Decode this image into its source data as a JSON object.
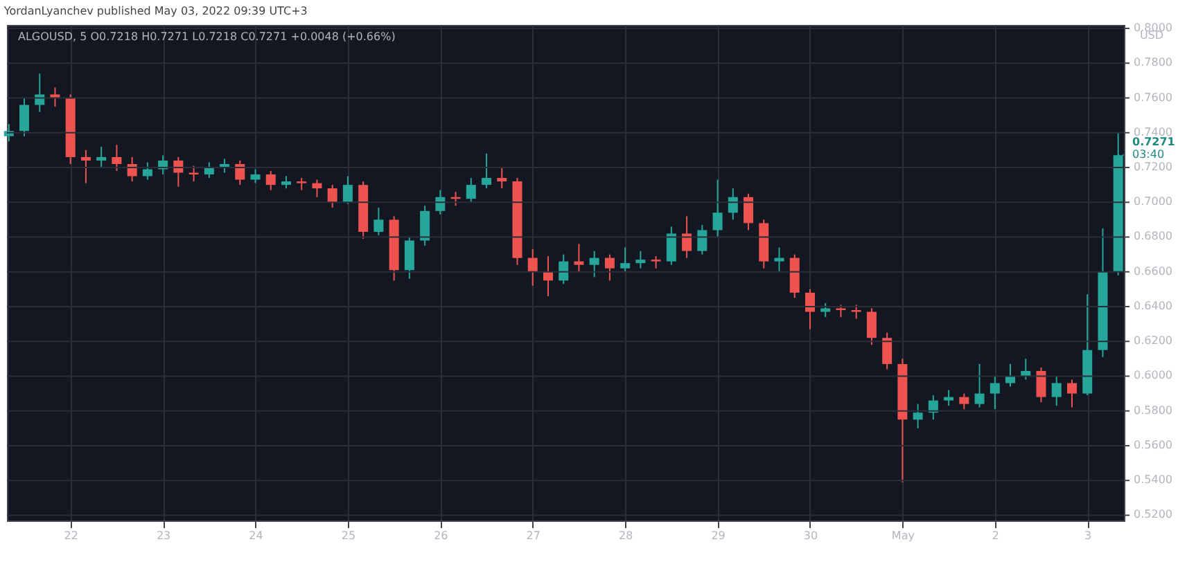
{
  "chart_data": {
    "type": "candlestick",
    "title": "YordanLyanchev published May 03, 2022 09:39 UTC+3",
    "subtitle": "ALGOUSD, 5  O0.7218  H0.7271  L0.7218  C0.7271  +0.0048 (+0.66%)",
    "ylabel": "USD",
    "annotations": [
      {
        "text": "0.7271",
        "x": "2022-05-03T08:00",
        "y": 0.7271
      },
      "03:40"
    ],
    "x": [
      "2022-04-21T08:00",
      "2022-04-21T12:00",
      "2022-04-21T16:00",
      "2022-04-21T20:00",
      "2022-04-22T00:00",
      "2022-04-22T04:00",
      "2022-04-22T08:00",
      "2022-04-22T12:00",
      "2022-04-22T16:00",
      "2022-04-22T20:00",
      "2022-04-23T00:00",
      "2022-04-23T04:00",
      "2022-04-23T08:00",
      "2022-04-23T12:00",
      "2022-04-23T16:00",
      "2022-04-23T20:00",
      "2022-04-24T00:00",
      "2022-04-24T04:00",
      "2022-04-24T08:00",
      "2022-04-24T12:00",
      "2022-04-24T16:00",
      "2022-04-24T20:00",
      "2022-04-25T00:00",
      "2022-04-25T04:00",
      "2022-04-25T08:00",
      "2022-04-25T12:00",
      "2022-04-25T16:00",
      "2022-04-25T20:00",
      "2022-04-26T00:00",
      "2022-04-26T04:00",
      "2022-04-26T08:00",
      "2022-04-26T12:00",
      "2022-04-26T16:00",
      "2022-04-26T20:00",
      "2022-04-27T00:00",
      "2022-04-27T04:00",
      "2022-04-27T08:00",
      "2022-04-27T12:00",
      "2022-04-27T16:00",
      "2022-04-27T20:00",
      "2022-04-28T00:00",
      "2022-04-28T04:00",
      "2022-04-28T08:00",
      "2022-04-28T12:00",
      "2022-04-28T16:00",
      "2022-04-28T20:00",
      "2022-04-29T00:00",
      "2022-04-29T04:00",
      "2022-04-29T08:00",
      "2022-04-29T12:00",
      "2022-04-29T16:00",
      "2022-04-29T20:00",
      "2022-04-30T00:00",
      "2022-04-30T04:00",
      "2022-04-30T08:00",
      "2022-04-30T12:00",
      "2022-04-30T16:00",
      "2022-04-30T20:00",
      "2022-05-01T00:00",
      "2022-05-01T04:00",
      "2022-05-01T08:00",
      "2022-05-01T12:00",
      "2022-05-01T16:00",
      "2022-05-01T20:00",
      "2022-05-02T00:00",
      "2022-05-02T04:00",
      "2022-05-02T08:00",
      "2022-05-02T12:00",
      "2022-05-02T16:00",
      "2022-05-02T20:00",
      "2022-05-03T00:00",
      "2022-05-03T04:00",
      "2022-05-03T08:00"
    ],
    "ohlc": [
      [
        0.738,
        0.745,
        0.735,
        0.741
      ],
      [
        0.741,
        0.76,
        0.738,
        0.756
      ],
      [
        0.756,
        0.774,
        0.752,
        0.762
      ],
      [
        0.762,
        0.766,
        0.755,
        0.76
      ],
      [
        0.76,
        0.762,
        0.722,
        0.726
      ],
      [
        0.726,
        0.73,
        0.711,
        0.724
      ],
      [
        0.724,
        0.732,
        0.72,
        0.726
      ],
      [
        0.726,
        0.733,
        0.718,
        0.722
      ],
      [
        0.722,
        0.726,
        0.712,
        0.715
      ],
      [
        0.715,
        0.723,
        0.713,
        0.719
      ],
      [
        0.719,
        0.727,
        0.716,
        0.724
      ],
      [
        0.724,
        0.726,
        0.709,
        0.717
      ],
      [
        0.717,
        0.721,
        0.712,
        0.716
      ],
      [
        0.716,
        0.723,
        0.714,
        0.72
      ],
      [
        0.72,
        0.725,
        0.717,
        0.722
      ],
      [
        0.722,
        0.724,
        0.71,
        0.713
      ],
      [
        0.713,
        0.719,
        0.711,
        0.716
      ],
      [
        0.716,
        0.718,
        0.707,
        0.71
      ],
      [
        0.71,
        0.715,
        0.708,
        0.712
      ],
      [
        0.712,
        0.714,
        0.707,
        0.711
      ],
      [
        0.711,
        0.713,
        0.703,
        0.708
      ],
      [
        0.708,
        0.71,
        0.697,
        0.7
      ],
      [
        0.7,
        0.715,
        0.699,
        0.71
      ],
      [
        0.71,
        0.712,
        0.679,
        0.683
      ],
      [
        0.683,
        0.697,
        0.681,
        0.69
      ],
      [
        0.69,
        0.692,
        0.655,
        0.661
      ],
      [
        0.661,
        0.68,
        0.656,
        0.678
      ],
      [
        0.678,
        0.698,
        0.675,
        0.695
      ],
      [
        0.695,
        0.707,
        0.693,
        0.703
      ],
      [
        0.703,
        0.706,
        0.698,
        0.702
      ],
      [
        0.702,
        0.714,
        0.7,
        0.71
      ],
      [
        0.71,
        0.728,
        0.708,
        0.714
      ],
      [
        0.714,
        0.72,
        0.708,
        0.712
      ],
      [
        0.712,
        0.714,
        0.664,
        0.668
      ],
      [
        0.668,
        0.673,
        0.652,
        0.66
      ],
      [
        0.66,
        0.669,
        0.646,
        0.655
      ],
      [
        0.655,
        0.67,
        0.653,
        0.666
      ],
      [
        0.666,
        0.676,
        0.66,
        0.664
      ],
      [
        0.664,
        0.672,
        0.657,
        0.668
      ],
      [
        0.668,
        0.67,
        0.655,
        0.662
      ],
      [
        0.662,
        0.674,
        0.66,
        0.665
      ],
      [
        0.665,
        0.672,
        0.662,
        0.667
      ],
      [
        0.667,
        0.669,
        0.662,
        0.666
      ],
      [
        0.666,
        0.686,
        0.664,
        0.682
      ],
      [
        0.682,
        0.692,
        0.668,
        0.672
      ],
      [
        0.672,
        0.687,
        0.67,
        0.684
      ],
      [
        0.684,
        0.713,
        0.68,
        0.694
      ],
      [
        0.694,
        0.708,
        0.69,
        0.703
      ],
      [
        0.703,
        0.705,
        0.684,
        0.688
      ],
      [
        0.688,
        0.69,
        0.662,
        0.666
      ],
      [
        0.666,
        0.674,
        0.66,
        0.668
      ],
      [
        0.668,
        0.67,
        0.645,
        0.648
      ],
      [
        0.648,
        0.65,
        0.627,
        0.637
      ],
      [
        0.637,
        0.642,
        0.634,
        0.639
      ],
      [
        0.639,
        0.641,
        0.634,
        0.638
      ],
      [
        0.638,
        0.641,
        0.633,
        0.637
      ],
      [
        0.637,
        0.639,
        0.618,
        0.622
      ],
      [
        0.622,
        0.625,
        0.604,
        0.607
      ],
      [
        0.607,
        0.61,
        0.539,
        0.575
      ],
      [
        0.575,
        0.584,
        0.57,
        0.579
      ],
      [
        0.579,
        0.589,
        0.575,
        0.586
      ],
      [
        0.586,
        0.592,
        0.583,
        0.588
      ],
      [
        0.588,
        0.59,
        0.581,
        0.584
      ],
      [
        0.584,
        0.607,
        0.582,
        0.59
      ],
      [
        0.59,
        0.6,
        0.581,
        0.596
      ],
      [
        0.596,
        0.607,
        0.594,
        0.6
      ],
      [
        0.6,
        0.61,
        0.598,
        0.603
      ],
      [
        0.603,
        0.605,
        0.585,
        0.588
      ],
      [
        0.588,
        0.6,
        0.583,
        0.596
      ],
      [
        0.596,
        0.598,
        0.582,
        0.59
      ],
      [
        0.59,
        0.647,
        0.589,
        0.615
      ],
      [
        0.615,
        0.685,
        0.611,
        0.66
      ],
      [
        0.66,
        0.74,
        0.658,
        0.7271
      ]
    ],
    "colors": [
      "#26a69a",
      "#26a69a",
      "#26a69a",
      "#ef5350",
      "#ef5350",
      "#ef5350",
      "#26a69a",
      "#ef5350",
      "#ef5350",
      "#26a69a",
      "#26a69a",
      "#ef5350",
      "#ef5350",
      "#26a69a",
      "#26a69a",
      "#ef5350",
      "#26a69a",
      "#ef5350",
      "#26a69a",
      "#ef5350",
      "#ef5350",
      "#ef5350",
      "#26a69a",
      "#ef5350",
      "#26a69a",
      "#ef5350",
      "#26a69a",
      "#26a69a",
      "#26a69a",
      "#ef5350",
      "#26a69a",
      "#26a69a",
      "#ef5350",
      "#ef5350",
      "#ef5350",
      "#ef5350",
      "#26a69a",
      "#ef5350",
      "#26a69a",
      "#ef5350",
      "#26a69a",
      "#26a69a",
      "#ef5350",
      "#26a69a",
      "#ef5350",
      "#26a69a",
      "#26a69a",
      "#26a69a",
      "#ef5350",
      "#ef5350",
      "#26a69a",
      "#ef5350",
      "#ef5350",
      "#26a69a",
      "#ef5350",
      "#ef5350",
      "#ef5350",
      "#ef5350",
      "#ef5350",
      "#26a69a",
      "#26a69a",
      "#26a69a",
      "#ef5350",
      "#26a69a",
      "#26a69a",
      "#26a69a",
      "#26a69a",
      "#ef5350",
      "#26a69a",
      "#ef5350",
      "#26a69a",
      "#26a69a",
      "#26a69a"
    ],
    "xlim": [
      "2022-04-21T07:30",
      "2022-05-03T09:30"
    ],
    "xticks": [
      {
        "value": "2022-04-22",
        "label": "22"
      },
      {
        "value": "2022-04-23",
        "label": "23"
      },
      {
        "value": "2022-04-24",
        "label": "24"
      },
      {
        "value": "2022-04-25",
        "label": "25"
      },
      {
        "value": "2022-04-26",
        "label": "26"
      },
      {
        "value": "2022-04-27",
        "label": "27"
      },
      {
        "value": "2022-04-28",
        "label": "28"
      },
      {
        "value": "2022-04-29",
        "label": "29"
      },
      {
        "value": "2022-04-30",
        "label": "30"
      },
      {
        "value": "2022-05-01",
        "label": "May"
      },
      {
        "value": "2022-05-02",
        "label": "2"
      },
      {
        "value": "2022-05-03",
        "label": "3"
      }
    ],
    "ylim": [
      0.517,
      0.802
    ],
    "yticks": [
      {
        "value": 0.52,
        "label": "0.5200"
      },
      {
        "value": 0.54,
        "label": "0.5400"
      },
      {
        "value": 0.56,
        "label": "0.5600"
      },
      {
        "value": 0.58,
        "label": "0.5800"
      },
      {
        "value": 0.6,
        "label": "0.6000"
      },
      {
        "value": 0.62,
        "label": "0.6200"
      },
      {
        "value": 0.64,
        "label": "0.6400"
      },
      {
        "value": 0.66,
        "label": "0.6600"
      },
      {
        "value": 0.68,
        "label": "0.6800"
      },
      {
        "value": 0.7,
        "label": "0.7000"
      },
      {
        "value": 0.72,
        "label": "0.7200"
      },
      {
        "value": 0.74,
        "label": "0.7400"
      },
      {
        "value": 0.76,
        "label": "0.7600"
      },
      {
        "value": 0.78,
        "label": "0.7800"
      },
      {
        "value": 0.8,
        "label": "0.8000"
      }
    ],
    "grid": true
  }
}
